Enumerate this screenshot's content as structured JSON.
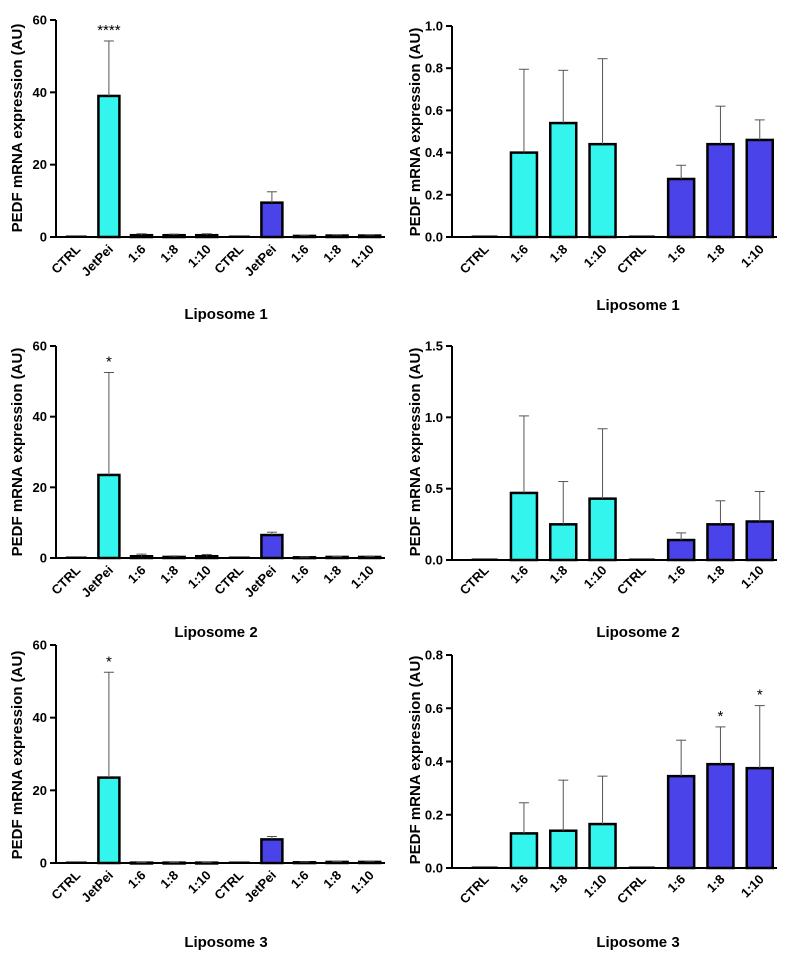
{
  "chart_data": [
    {
      "type": "bar",
      "title": "",
      "xlabel": "Liposome 1",
      "ylabel": "PEDF mRNA expression (AU)",
      "ylim": [
        0,
        60
      ],
      "yticks": [
        0,
        20,
        40,
        60
      ],
      "categories": [
        "CTRL",
        "JetPei",
        "1:6",
        "1:8",
        "1:10",
        "CTRL",
        "JetPei",
        "1:6",
        "1:8",
        "1:10"
      ],
      "values": [
        0,
        39,
        0.5,
        0.5,
        0.5,
        0,
        9.5,
        0.3,
        0.4,
        0.4
      ],
      "errors": [
        0,
        15.2,
        0.4,
        0.3,
        0.4,
        0,
        3,
        0.2,
        0.2,
        0.2
      ],
      "colors": [
        "#33f5ee",
        "#33f5ee",
        "#33f5ee",
        "#33f5ee",
        "#33f5ee",
        "#4a43ea",
        "#4a43ea",
        "#4a43ea",
        "#4a43ea",
        "#4a43ea"
      ],
      "significance": [
        "",
        "****",
        "",
        "",
        "",
        "",
        "",
        "",
        "",
        ""
      ]
    },
    {
      "type": "bar",
      "title": "",
      "xlabel": "Liposome 1",
      "ylabel": "PEDF mRNA expression (AU)",
      "ylim": [
        0,
        1.0
      ],
      "yticks": [
        "0.0",
        "0.2",
        "0.4",
        "0.6",
        "0.8",
        "1.0"
      ],
      "categories": [
        "CTRL",
        "1:6",
        "1:8",
        "1:10",
        "CTRL",
        "1:6",
        "1:8",
        "1:10"
      ],
      "values": [
        0,
        0.4,
        0.54,
        0.44,
        0,
        0.275,
        0.44,
        0.46
      ],
      "errors": [
        0,
        0.395,
        0.25,
        0.405,
        0,
        0.065,
        0.18,
        0.095
      ],
      "colors": [
        "#33f5ee",
        "#33f5ee",
        "#33f5ee",
        "#33f5ee",
        "#4a43ea",
        "#4a43ea",
        "#4a43ea",
        "#4a43ea"
      ],
      "significance": [
        "",
        "",
        "",
        "",
        "",
        "",
        "",
        ""
      ]
    },
    {
      "type": "bar",
      "title": "",
      "xlabel": "Liposome 2",
      "ylabel": "PEDF mRNA expression (AU)",
      "ylim": [
        0,
        60
      ],
      "yticks": [
        0,
        20,
        40,
        60
      ],
      "categories": [
        "CTRL",
        "JetPei",
        "1:6",
        "1:8",
        "1:10",
        "CTRL",
        "JetPei",
        "1:6",
        "1:8",
        "1:10"
      ],
      "values": [
        0,
        23.5,
        0.5,
        0.3,
        0.5,
        0,
        6.5,
        0.2,
        0.3,
        0.3
      ],
      "errors": [
        0,
        29,
        0.6,
        0.3,
        0.5,
        0,
        0.8,
        0.1,
        0.1,
        0.2
      ],
      "colors": [
        "#33f5ee",
        "#33f5ee",
        "#33f5ee",
        "#33f5ee",
        "#33f5ee",
        "#4a43ea",
        "#4a43ea",
        "#4a43ea",
        "#4a43ea",
        "#4a43ea"
      ],
      "significance": [
        "",
        "*",
        "",
        "",
        "",
        "",
        "",
        "",
        "",
        ""
      ]
    },
    {
      "type": "bar",
      "title": "",
      "xlabel": "Liposome 2",
      "ylabel": "PEDF mRNA expression (AU)",
      "ylim": [
        0,
        1.5
      ],
      "yticks": [
        "0.0",
        "0.5",
        "1.0",
        "1.5"
      ],
      "categories": [
        "CTRL",
        "1:6",
        "1:8",
        "1:10",
        "CTRL",
        "1:6",
        "1:8",
        "1:10"
      ],
      "values": [
        0,
        0.47,
        0.25,
        0.43,
        0,
        0.14,
        0.25,
        0.27
      ],
      "errors": [
        0,
        0.54,
        0.3,
        0.49,
        0,
        0.05,
        0.165,
        0.21
      ],
      "colors": [
        "#33f5ee",
        "#33f5ee",
        "#33f5ee",
        "#33f5ee",
        "#4a43ea",
        "#4a43ea",
        "#4a43ea",
        "#4a43ea"
      ],
      "significance": [
        "",
        "",
        "",
        "",
        "",
        "",
        "",
        ""
      ]
    },
    {
      "type": "bar",
      "title": "",
      "xlabel": "Liposome 3",
      "ylabel": "PEDF mRNA expression (AU)",
      "ylim": [
        0,
        60
      ],
      "yticks": [
        0,
        20,
        40,
        60
      ],
      "categories": [
        "CTRL",
        "JetPei",
        "1:6",
        "1:8",
        "1:10",
        "CTRL",
        "JetPei",
        "1:6",
        "1:8",
        "1:10"
      ],
      "values": [
        0,
        23.5,
        0.1,
        0.1,
        0.1,
        0,
        6.5,
        0.2,
        0.3,
        0.3
      ],
      "errors": [
        0,
        29,
        0.1,
        0.1,
        0.1,
        0,
        0.8,
        0.1,
        0.1,
        0.2
      ],
      "colors": [
        "#33f5ee",
        "#33f5ee",
        "#33f5ee",
        "#33f5ee",
        "#33f5ee",
        "#4a43ea",
        "#4a43ea",
        "#4a43ea",
        "#4a43ea",
        "#4a43ea"
      ],
      "significance": [
        "",
        "*",
        "",
        "",
        "",
        "",
        "",
        "",
        "",
        ""
      ]
    },
    {
      "type": "bar",
      "title": "",
      "xlabel": "Liposome 3",
      "ylabel": "PEDF mRNA expression (AU)",
      "ylim": [
        0,
        0.8
      ],
      "yticks": [
        "0.0",
        "0.2",
        "0.4",
        "0.6",
        "0.8"
      ],
      "categories": [
        "CTRL",
        "1:6",
        "1:8",
        "1:10",
        "CTRL",
        "1:6",
        "1:8",
        "1:10"
      ],
      "values": [
        0,
        0.13,
        0.14,
        0.165,
        0,
        0.345,
        0.39,
        0.375
      ],
      "errors": [
        0,
        0.115,
        0.19,
        0.18,
        0,
        0.135,
        0.14,
        0.235
      ],
      "colors": [
        "#33f5ee",
        "#33f5ee",
        "#33f5ee",
        "#33f5ee",
        "#4a43ea",
        "#4a43ea",
        "#4a43ea",
        "#4a43ea"
      ],
      "significance": [
        "",
        "",
        "",
        "",
        "",
        "",
        "*",
        "*"
      ]
    }
  ]
}
